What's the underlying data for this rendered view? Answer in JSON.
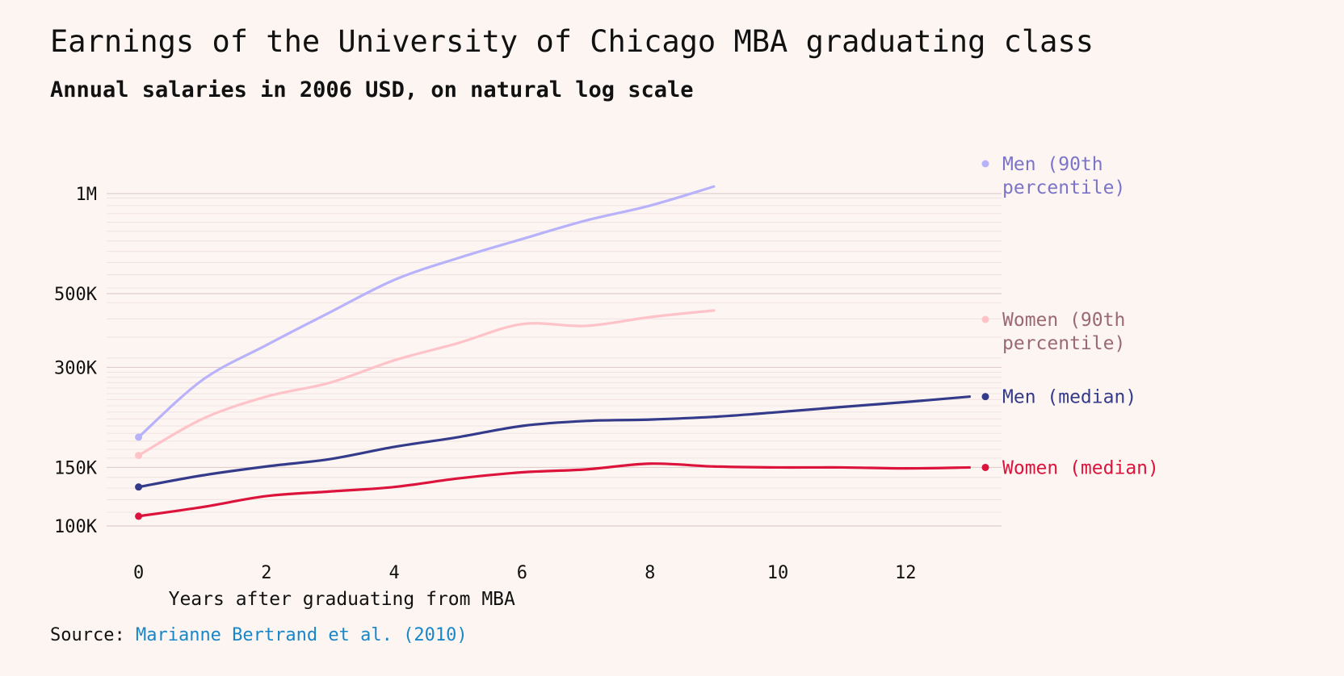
{
  "title": "Earnings of the University of Chicago MBA graduating class",
  "subtitle": "Annual salaries in 2006 USD, on natural log scale",
  "source": {
    "prefix": "Source: ",
    "link_text": "Marianne Bertrand et al. (2010)"
  },
  "chart_data": {
    "type": "line",
    "title": "Earnings of the University of Chicago MBA graduating class",
    "subtitle": "Annual salaries in 2006 USD, on natural log scale",
    "xlabel": "Years after graduating from MBA",
    "ylabel": "",
    "y_scale": "log",
    "xlim": [
      -0.5,
      13.5
    ],
    "ylim": [
      100000,
      1000000
    ],
    "xticks": [
      0,
      2,
      4,
      6,
      8,
      10,
      12
    ],
    "xtick_labels": [
      "0",
      "2",
      "4",
      "6",
      "8",
      "10",
      "12"
    ],
    "yticks": [
      100000,
      150000,
      300000,
      500000,
      1000000
    ],
    "ytick_labels": [
      "100K",
      "150K",
      "300K",
      "500K",
      "1M"
    ],
    "legend_placement": "right, inline at line ends",
    "series": [
      {
        "name": "Men (90th percentile)",
        "label_lines": [
          "Men (90th",
          "percentile)"
        ],
        "color": "#b8b2fb",
        "label_color": "#7b74c9",
        "x": [
          0,
          1,
          2,
          3,
          4,
          5,
          6,
          7,
          8,
          9
        ],
        "values": [
          185000,
          275000,
          350000,
          440000,
          550000,
          640000,
          730000,
          830000,
          920000,
          1050000
        ]
      },
      {
        "name": "Women (90th percentile)",
        "label_lines": [
          "Women (90th",
          "percentile)"
        ],
        "color": "#fec3c8",
        "label_color": "#9a6a70",
        "x": [
          0,
          1,
          2,
          3,
          4,
          5,
          6,
          7,
          8,
          9
        ],
        "values": [
          163000,
          210000,
          245000,
          270000,
          315000,
          355000,
          405000,
          400000,
          425000,
          445000
        ]
      },
      {
        "name": "Men (median)",
        "label_lines": [
          "Men (median)"
        ],
        "color": "#353b8b",
        "label_color": "#353b8b",
        "x": [
          0,
          1,
          2,
          3,
          4,
          5,
          6,
          7,
          8,
          9,
          10,
          11,
          12,
          13
        ],
        "values": [
          131000,
          142000,
          151000,
          159000,
          173000,
          185000,
          200000,
          207000,
          209000,
          213000,
          220000,
          228000,
          236000,
          245000
        ]
      },
      {
        "name": "Women (median)",
        "label_lines": [
          "Women (median)"
        ],
        "color": "#dc143c",
        "label_color": "#dc143c",
        "x": [
          0,
          1,
          2,
          3,
          4,
          5,
          6,
          7,
          8,
          9,
          10,
          11,
          12,
          13
        ],
        "values": [
          107000,
          114000,
          123000,
          127000,
          131000,
          139000,
          145000,
          148000,
          154000,
          151000,
          150000,
          150000,
          149000,
          150000
        ]
      }
    ]
  }
}
